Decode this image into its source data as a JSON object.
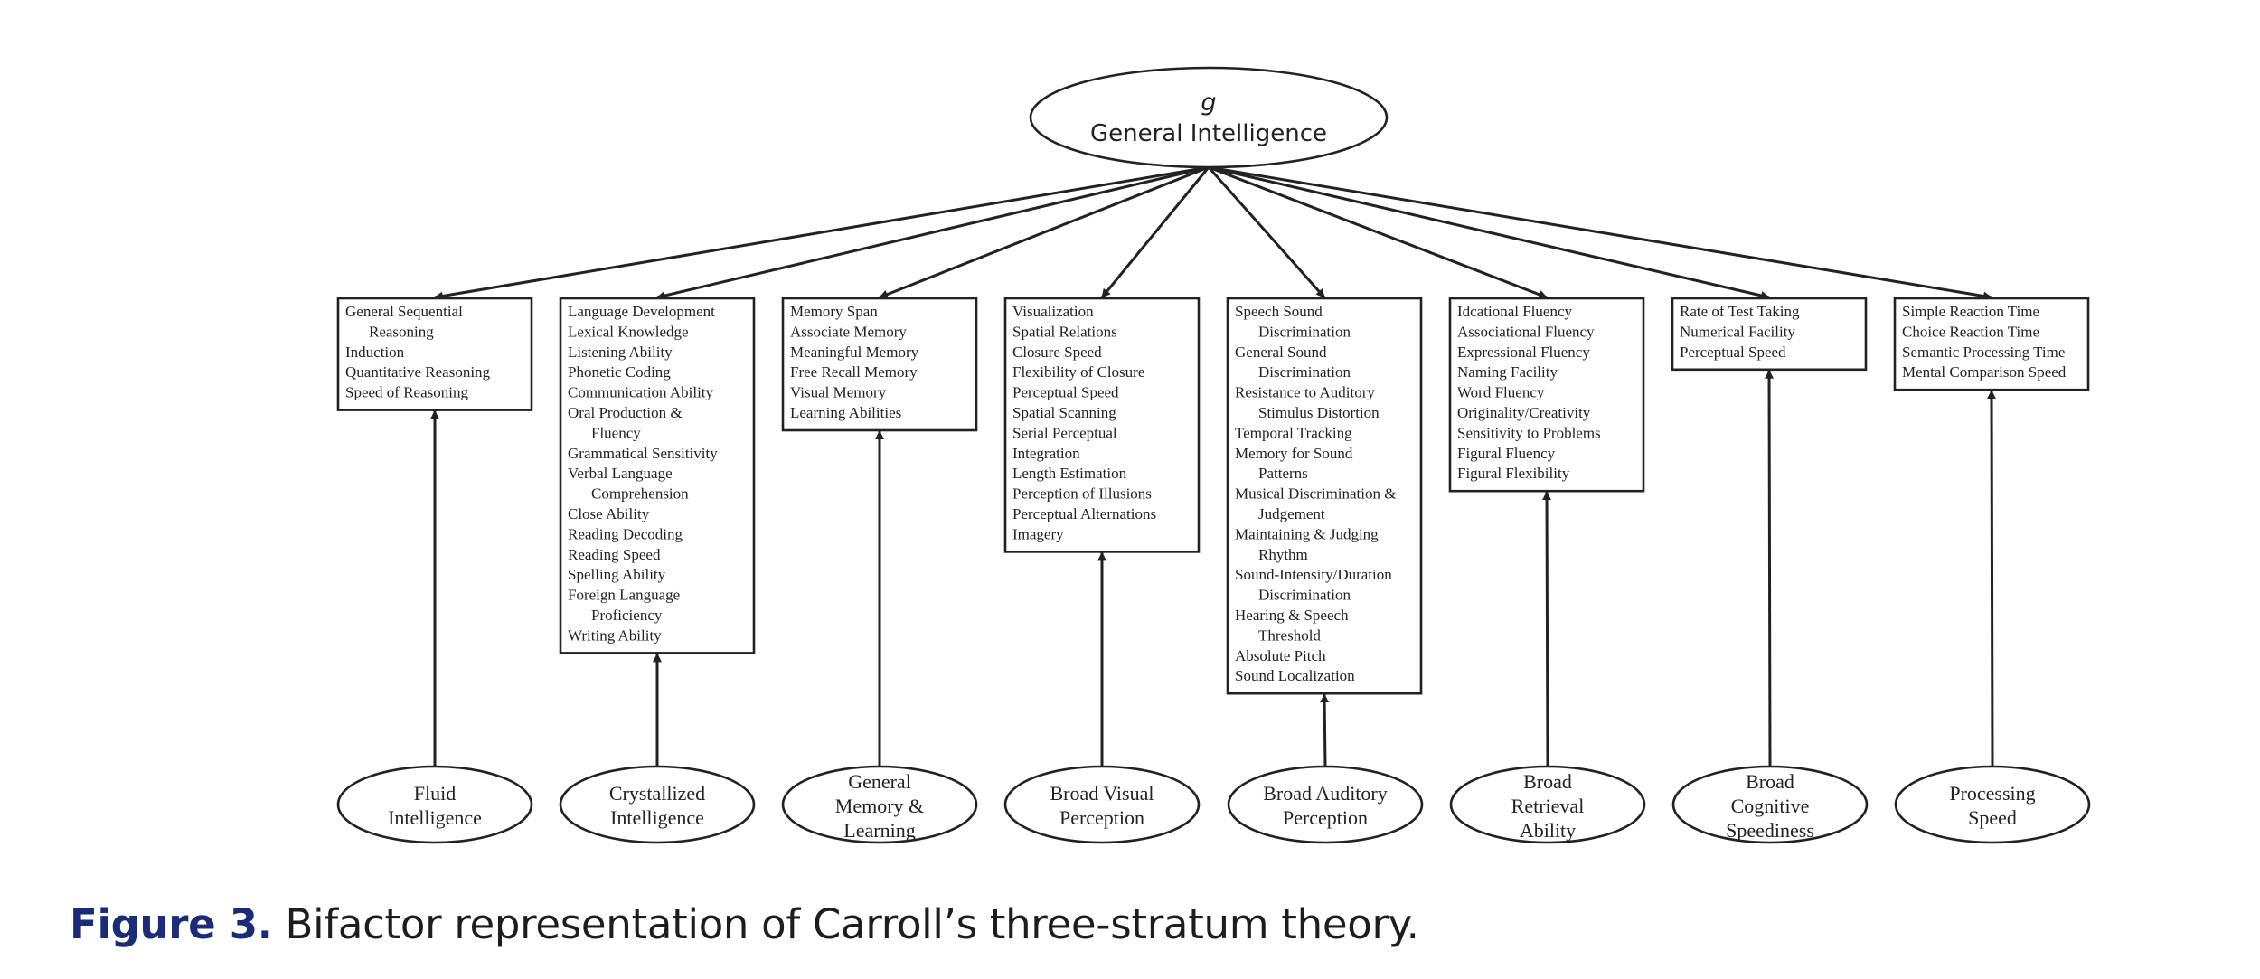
{
  "diagram": {
    "root": {
      "symbol": "g",
      "label": "General Intelligence"
    },
    "factors": [
      {
        "lines": [
          "Fluid",
          "Intelligence"
        ],
        "abilities": [
          "General Sequential",
          "   Reasoning",
          "Induction",
          "Quantitative Reasoning",
          "Speed of Reasoning"
        ]
      },
      {
        "lines": [
          "Crystallized",
          "Intelligence"
        ],
        "abilities": [
          "Language Development",
          "Lexical Knowledge",
          "Listening Ability",
          "Phonetic Coding",
          "Communication Ability",
          "Oral Production &",
          "   Fluency",
          "Grammatical Sensitivity",
          "Verbal Language",
          "   Comprehension",
          "Close Ability",
          "Reading Decoding",
          "Reading Speed",
          "Spelling Ability",
          "Foreign Language",
          "   Proficiency",
          "Writing Ability"
        ]
      },
      {
        "lines": [
          "General",
          "Memory &",
          "Learning"
        ],
        "abilities": [
          "Memory Span",
          "Associate Memory",
          "Meaningful Memory",
          "Free Recall Memory",
          "Visual Memory",
          "Learning Abilities"
        ]
      },
      {
        "lines": [
          "Broad Visual",
          "Perception"
        ],
        "abilities": [
          "Visualization",
          "Spatial Relations",
          "Closure Speed",
          "Flexibility of Closure",
          "Perceptual Speed",
          "Spatial Scanning",
          "Serial Perceptual",
          "Integration",
          "Length Estimation",
          "Perception of Illusions",
          "Perceptual Alternations",
          "Imagery"
        ]
      },
      {
        "lines": [
          "Broad Auditory",
          "Perception"
        ],
        "abilities": [
          "Speech Sound",
          "   Discrimination",
          "General Sound",
          "   Discrimination",
          "Resistance to Auditory",
          "   Stimulus Distortion",
          "Temporal Tracking",
          "Memory for Sound",
          "   Patterns",
          "Musical Discrimination &",
          "   Judgement",
          "Maintaining & Judging",
          "   Rhythm",
          "Sound-Intensity/Duration",
          "   Discrimination",
          "Hearing & Speech",
          "   Threshold",
          "Absolute Pitch",
          "Sound Localization"
        ]
      },
      {
        "lines": [
          "Broad",
          "Retrieval",
          "Ability"
        ],
        "abilities": [
          "Idcational Fluency",
          "Associational Fluency",
          "Expressional Fluency",
          "Naming Facility",
          "Word Fluency",
          "Originality/Creativity",
          "Sensitivity to Problems",
          "Figural Fluency",
          "Figural Flexibility"
        ]
      },
      {
        "lines": [
          "Broad",
          "Cognitive",
          "Speediness"
        ],
        "abilities": [
          "Rate of Test Taking",
          "Numerical Facility",
          "Perceptual Speed"
        ]
      },
      {
        "lines": [
          "Processing",
          "Speed"
        ],
        "abilities": [
          "Simple Reaction Time",
          "Choice Reaction Time",
          "Semantic Processing Time",
          "Mental Comparison Speed"
        ]
      }
    ]
  },
  "caption": {
    "number": "Figure 3.",
    "text": " Bifactor representation of Carroll’s three-stratum theory."
  }
}
